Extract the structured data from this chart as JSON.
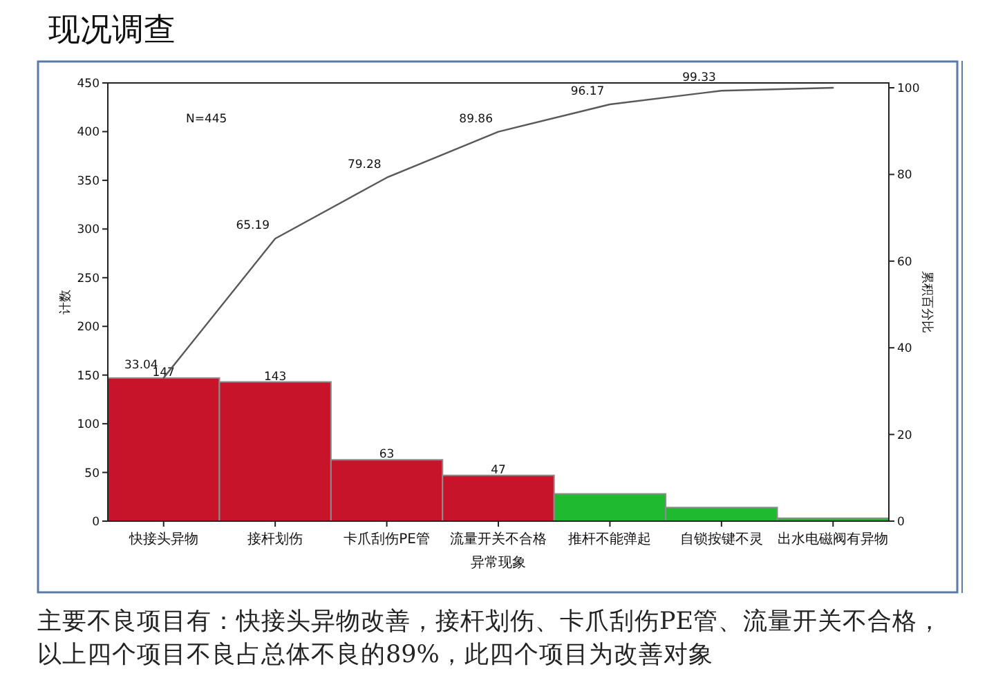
{
  "chart_data": {
    "type": "bar",
    "title": "现况调查",
    "xlabel": "异常现象",
    "ylabel": "计数",
    "y2label": "累积百分比",
    "categories": [
      "快接头异物",
      "接杆划伤",
      "卡爪刮伤PE管",
      "流量开关不合格",
      "推杆不能弹起",
      "自锁按键不灵",
      "出水电磁阀有异物"
    ],
    "ylim": [
      0,
      450
    ],
    "yticks": [
      0,
      50,
      100,
      150,
      200,
      250,
      300,
      350,
      400,
      450
    ],
    "y2lim": [
      0,
      101.12
    ],
    "y2ticks": [
      0,
      20,
      40,
      60,
      80,
      100
    ],
    "series": [
      {
        "colors": [
          "#c8142a",
          "#c8142a",
          "#c8142a",
          "#c8142a",
          "#1fba2f",
          "#1fba2f",
          "#1fba2f"
        ],
        "values": [
          147,
          143,
          63,
          47,
          28,
          14,
          3
        ],
        "value_labels": [
          "147",
          "143",
          "63",
          "47",
          null,
          null,
          null
        ]
      },
      {
        "type": "line",
        "axis": "y2",
        "color": "#595959",
        "values": [
          33.04,
          65.19,
          79.28,
          89.86,
          96.17,
          99.33,
          100
        ],
        "value_labels": [
          "33.04",
          "65.19",
          "79.28",
          "89.86",
          "96.17",
          "99.33",
          null
        ]
      }
    ],
    "annotations": [
      "N=445",
      "主要不良项目有：快接头异物改善，接杆划伤、卡爪刮伤PE管、流量开关不合格，以上四个项目不良占总体不良的89%，此四个项目为改善对象"
    ]
  }
}
